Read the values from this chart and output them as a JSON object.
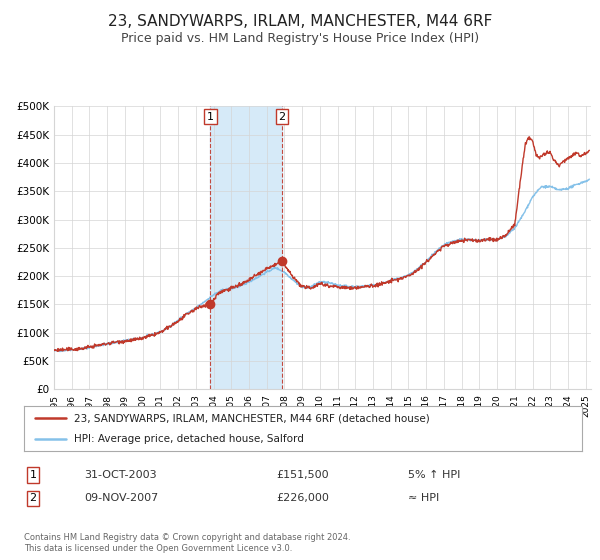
{
  "title": "23, SANDYWARPS, IRLAM, MANCHESTER, M44 6RF",
  "subtitle": "Price paid vs. HM Land Registry's House Price Index (HPI)",
  "title_fontsize": 11,
  "subtitle_fontsize": 9,
  "ylim": [
    0,
    500000
  ],
  "yticks": [
    0,
    50000,
    100000,
    150000,
    200000,
    250000,
    300000,
    350000,
    400000,
    450000,
    500000
  ],
  "ytick_labels": [
    "£0",
    "£50K",
    "£100K",
    "£150K",
    "£200K",
    "£250K",
    "£300K",
    "£350K",
    "£400K",
    "£450K",
    "£500K"
  ],
  "xlim_start": 1995.0,
  "xlim_end": 2025.3,
  "xtick_years": [
    1995,
    1996,
    1997,
    1998,
    1999,
    2000,
    2001,
    2002,
    2003,
    2004,
    2005,
    2006,
    2007,
    2008,
    2009,
    2010,
    2011,
    2012,
    2013,
    2014,
    2015,
    2016,
    2017,
    2018,
    2019,
    2020,
    2021,
    2022,
    2023,
    2024,
    2025
  ],
  "property_color": "#c0392b",
  "hpi_color": "#85c1e9",
  "shade_color": "#d6eaf8",
  "marker1_x": 2003.83,
  "marker1_y": 151500,
  "marker2_x": 2007.86,
  "marker2_y": 226000,
  "vline1_x": 2003.83,
  "vline2_x": 2007.86,
  "legend_property": "23, SANDYWARPS, IRLAM, MANCHESTER, M44 6RF (detached house)",
  "legend_hpi": "HPI: Average price, detached house, Salford",
  "event1_label": "1",
  "event1_date": "31-OCT-2003",
  "event1_price": "£151,500",
  "event1_note": "5% ↑ HPI",
  "event2_label": "2",
  "event2_date": "09-NOV-2007",
  "event2_price": "£226,000",
  "event2_note": "≈ HPI",
  "footer": "Contains HM Land Registry data © Crown copyright and database right 2024.\nThis data is licensed under the Open Government Licence v3.0.",
  "background_color": "#ffffff",
  "grid_color": "#d5d5d5"
}
